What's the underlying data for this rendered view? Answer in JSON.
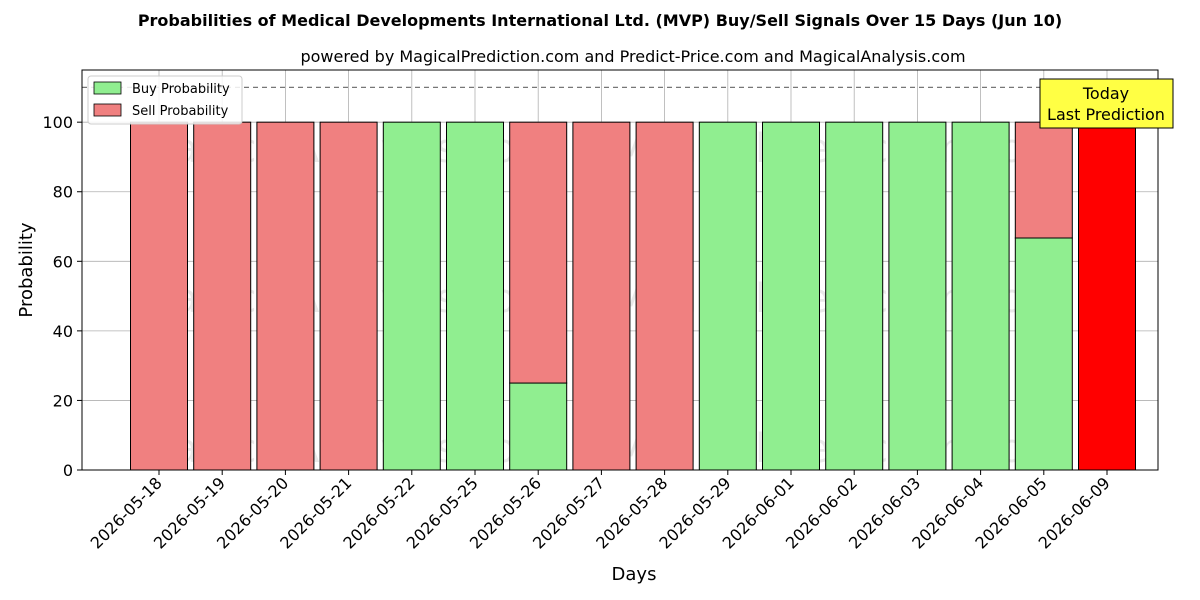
{
  "chart_data": {
    "type": "bar",
    "stacked": true,
    "title": "Probabilities of Medical Developments International Ltd. (MVP) Buy/Sell Signals Over 15 Days (Jun 10)",
    "subtitle": "powered by MagicalPrediction.com and Predict-Price.com and MagicalAnalysis.com",
    "xlabel": "Days",
    "ylabel": "Probability",
    "ylim": [
      0,
      115
    ],
    "yticks": [
      0,
      20,
      40,
      60,
      80,
      100
    ],
    "grid": true,
    "legend_position": "top-left",
    "reference_line": 110,
    "categories": [
      "2026-05-18",
      "2026-05-19",
      "2026-05-20",
      "2026-05-21",
      "2026-05-22",
      "2026-05-25",
      "2026-05-26",
      "2026-05-27",
      "2026-05-28",
      "2026-05-29",
      "2026-06-01",
      "2026-06-02",
      "2026-06-03",
      "2026-06-04",
      "2026-06-05",
      "2026-06-09"
    ],
    "series": [
      {
        "name": "Buy Probability",
        "color": "#90ee90",
        "values": [
          0,
          0,
          0,
          0,
          100,
          100,
          25,
          0,
          0,
          100,
          100,
          100,
          100,
          100,
          66.7,
          0
        ]
      },
      {
        "name": "Sell Probability",
        "color": "#f08080",
        "values": [
          100,
          100,
          100,
          100,
          0,
          0,
          75,
          100,
          100,
          0,
          0,
          0,
          0,
          0,
          33.3,
          100
        ]
      }
    ],
    "today_index": 15,
    "today_color": "#ff0000",
    "annotation": {
      "line1": "Today",
      "line2": "Last Prediction",
      "color": "#ffff44"
    },
    "watermarks": [
      "MagicalAnalysis.com",
      "MagicalPrediction.com"
    ]
  }
}
